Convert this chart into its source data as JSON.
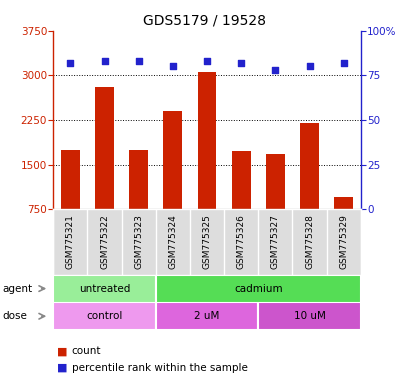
{
  "title": "GDS5179 / 19528",
  "samples": [
    "GSM775321",
    "GSM775322",
    "GSM775323",
    "GSM775324",
    "GSM775325",
    "GSM775326",
    "GSM775327",
    "GSM775328",
    "GSM775329"
  ],
  "counts": [
    1750,
    2800,
    1750,
    2400,
    3050,
    1730,
    1680,
    2200,
    950
  ],
  "percentiles": [
    82,
    83,
    83,
    80,
    83,
    82,
    78,
    80,
    82
  ],
  "ylim_left": [
    750,
    3750
  ],
  "ylim_right": [
    0,
    100
  ],
  "yticks_left": [
    750,
    1500,
    2250,
    3000,
    3750
  ],
  "yticks_right": [
    0,
    25,
    50,
    75,
    100
  ],
  "bar_color": "#cc2200",
  "dot_color": "#2222cc",
  "agent_untreated_color": "#99ee99",
  "agent_cadmium_color": "#55dd55",
  "dose_control_color": "#ee99ee",
  "dose_2um_color": "#dd66dd",
  "dose_10um_color": "#cc55cc",
  "label_bg_color": "#dddddd",
  "legend_count_color": "#cc2200",
  "legend_dot_color": "#2222cc"
}
